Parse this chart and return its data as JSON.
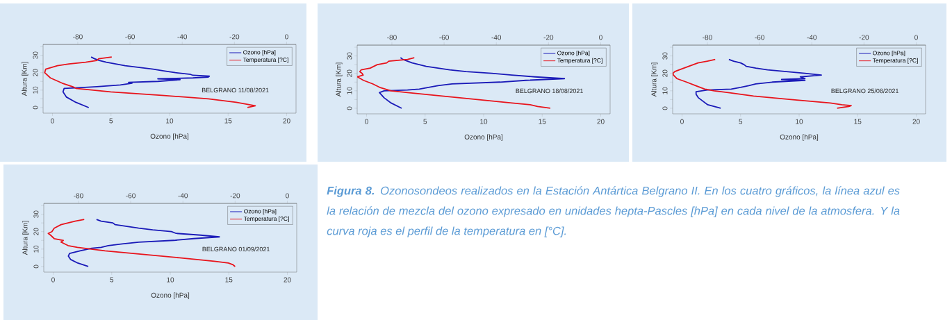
{
  "chart_data": [
    {
      "type": "line",
      "xlabel": "Ozono [hPa]",
      "ylabel": "Altura [Km]",
      "xlim": [
        -0.8,
        20.8
      ],
      "xticks": [
        0,
        5,
        10,
        15,
        20
      ],
      "x2lim": [
        -93.3,
        3.6
      ],
      "x2ticks": [
        -80,
        -60,
        -40,
        -20,
        0
      ],
      "ylim": [
        -3.2,
        36.2
      ],
      "yticks": [
        0,
        {
          "value": 5,
          "label": null
        },
        10,
        {
          "value": 15,
          "label": null
        },
        20,
        {
          "value": 25,
          "label": null
        },
        30,
        {
          "value": 35,
          "label": null
        }
      ],
      "legend": "top right",
      "annotations": [
        "BELGRANO 11/08/2021"
      ],
      "series": [
        {
          "name": "Ozono [hPa]",
          "color": "#1a1ab8",
          "x": [
            3.1,
            2.0,
            1.2,
            0.9,
            1.0,
            2.5,
            3.8,
            5.8,
            6.8,
            6.5,
            9.0,
            10.9,
            9.0,
            12.0,
            13.3,
            13.4,
            12.0,
            11.8,
            10.5,
            9.5,
            8.6,
            6.2,
            4.6,
            4.0,
            3.6,
            3.3
          ],
          "values": [
            0,
            3,
            6,
            9,
            11,
            11.5,
            12,
            13,
            14,
            14.5,
            15,
            16,
            16.5,
            17,
            17.5,
            18,
            18.5,
            19,
            20,
            21,
            22,
            24,
            26,
            27,
            28,
            29
          ]
        },
        {
          "name": "Temperatura [?C]",
          "color": "#e8141c",
          "axis": "x2",
          "x": [
            -15,
            -12,
            -19.3,
            -30,
            -47.8,
            -67.4,
            -80.7,
            -82,
            -86,
            -90.5,
            -92.7,
            -92.3,
            -87.8,
            -83.4,
            -77,
            -72.7,
            -72,
            -67
          ],
          "values": [
            0,
            1,
            3,
            5,
            7,
            9,
            11,
            12,
            14,
            17,
            20,
            22,
            24,
            25,
            26,
            27,
            28,
            29
          ]
        }
      ]
    },
    {
      "type": "line",
      "xlabel": "Ozono [hPa]",
      "ylabel": "Altura [Km]",
      "xlim": [
        -0.8,
        20.8
      ],
      "xticks": [
        0,
        5,
        10,
        15,
        20
      ],
      "x2lim": [
        -93.3,
        3.6
      ],
      "x2ticks": [
        -80,
        -60,
        -40,
        -20,
        0
      ],
      "ylim": [
        -3.2,
        36.2
      ],
      "yticks": [
        0,
        {
          "value": 5,
          "label": null
        },
        10,
        {
          "value": 15,
          "label": null
        },
        20,
        {
          "value": 25,
          "label": null
        },
        30,
        {
          "value": 35,
          "label": null
        }
      ],
      "legend": "top right",
      "annotations": [
        "BELGRANO 18/08/2021"
      ],
      "series": [
        {
          "name": "Ozono [hPa]",
          "color": "#1a1ab8",
          "x": [
            3.0,
            2.1,
            1.5,
            1.1,
            1.5,
            3.5,
            4.5,
            5.3,
            6.1,
            7.3,
            11.4,
            13.6,
            16.9,
            14.4,
            12.4,
            10.7,
            8.5,
            7.1,
            5.1,
            3.9,
            3.5,
            3.1,
            2.9
          ],
          "values": [
            0,
            3,
            6,
            9,
            10,
            10.5,
            11,
            12,
            13,
            14,
            15,
            16,
            17,
            18,
            19,
            20,
            21,
            22,
            24,
            26,
            27,
            28,
            29
          ]
        },
        {
          "name": "Temperatura [?C]",
          "color": "#e8141c",
          "axis": "x2",
          "x": [
            -19.3,
            -24.2,
            -27,
            -34,
            -47.3,
            -60.7,
            -74,
            -80.3,
            -84.7,
            -87.4,
            -90.9,
            -93.2,
            -91,
            -91.4,
            -92.3,
            -91.8,
            -88.3,
            -85.6,
            -82,
            -81.2,
            -74,
            -71.4
          ],
          "values": [
            0,
            1,
            2,
            3,
            5,
            7,
            9,
            10,
            12,
            14,
            16,
            18,
            19,
            20,
            21,
            22,
            23,
            25,
            26,
            27,
            28,
            29
          ]
        }
      ]
    },
    {
      "type": "line",
      "xlabel": "Ozono [hPa]",
      "ylabel": "Altura [Km]",
      "xlim": [
        -0.8,
        20.8
      ],
      "xticks": [
        0,
        5,
        10,
        15,
        20
      ],
      "x2lim": [
        -93.3,
        3.6
      ],
      "x2ticks": [
        -80,
        -60,
        -40,
        -20,
        0
      ],
      "ylim": [
        -3.2,
        36.2
      ],
      "yticks": [
        0,
        {
          "value": 5,
          "label": null
        },
        10,
        {
          "value": 15,
          "label": null
        },
        20,
        {
          "value": 25,
          "label": null
        },
        30,
        {
          "value": 35,
          "label": null
        }
      ],
      "legend": "top right",
      "annotations": [
        "BELGRANO 25/08/2021"
      ],
      "series": [
        {
          "name": "Ozono [hPa]",
          "color": "#1a1ab8",
          "x": [
            3.3,
            2.2,
            1.8,
            1.4,
            1.2,
            1.2,
            2.2,
            4.2,
            5.0,
            5.7,
            6.3,
            7.7,
            10.5,
            8.5,
            10.5,
            10.1,
            11.9,
            10.5,
            8.9,
            7.3,
            6.3,
            5.5,
            5.3,
            5.0,
            4.4,
            4.0
          ],
          "values": [
            0,
            2,
            4,
            6,
            8,
            9.5,
            10.5,
            11,
            12,
            13,
            14,
            15,
            16,
            16.5,
            17,
            18,
            19,
            20,
            21,
            22,
            23,
            24,
            25,
            26,
            27,
            28
          ]
        },
        {
          "name": "Temperatura [?C]",
          "color": "#e8141c",
          "axis": "x2",
          "x": [
            -30.3,
            -25.8,
            -24.9,
            -28.5,
            -32.9,
            -48,
            -62.3,
            -72,
            -77.4,
            -81,
            -84.5,
            -88,
            -91.7,
            -93,
            -93.2,
            -92.5,
            -90.8,
            -87.2,
            -83.6,
            -80,
            -77
          ],
          "values": [
            0,
            1,
            1.5,
            2,
            3,
            5,
            7,
            9,
            10,
            11,
            13,
            15,
            17,
            19,
            20,
            21,
            22,
            24,
            26,
            27,
            28
          ]
        }
      ]
    },
    {
      "type": "line",
      "xlabel": "Ozono [hPa]",
      "ylabel": "Altura [Km]",
      "xlim": [
        -0.8,
        20.8
      ],
      "xticks": [
        0,
        5,
        10,
        15,
        20
      ],
      "x2lim": [
        -93.3,
        3.6
      ],
      "x2ticks": [
        -80,
        -60,
        -40,
        -20,
        0
      ],
      "ylim": [
        -3.2,
        36.2
      ],
      "yticks": [
        0,
        {
          "value": 5,
          "label": null
        },
        10,
        {
          "value": 15,
          "label": null
        },
        20,
        {
          "value": 25,
          "label": null
        },
        30,
        {
          "value": 35,
          "label": null
        }
      ],
      "legend": "top right",
      "annotations": [
        "BELGRANO 01/09/2021"
      ],
      "series": [
        {
          "name": "Ozono [hPa]",
          "color": "#1a1ab8",
          "x": [
            3.0,
            2.1,
            1.5,
            1.3,
            1.4,
            2.3,
            3.3,
            4.1,
            4.7,
            5.9,
            7.3,
            10.3,
            12.0,
            14.2,
            12.6,
            10.5,
            10.1,
            8.5,
            7.3,
            5.3,
            5.1,
            4.1,
            3.7
          ],
          "values": [
            0,
            2,
            4,
            6,
            7.5,
            9,
            10.5,
            11,
            12,
            13,
            14,
            15,
            16,
            17,
            18,
            19,
            20,
            21,
            22,
            24,
            25,
            26,
            27
          ]
        },
        {
          "name": "Temperatura [?C]",
          "color": "#e8141c",
          "axis": "x2",
          "x": [
            -20,
            -20.8,
            -22.6,
            -28,
            -41.3,
            -55.5,
            -69.8,
            -75.1,
            -80.4,
            -84,
            -86.7,
            -85.8,
            -89.3,
            -90.7,
            -91.6,
            -90.2,
            -89.3,
            -86.7,
            -81.3,
            -77.8
          ],
          "values": [
            0,
            1,
            2,
            3,
            5,
            7,
            9,
            10,
            11,
            12,
            14,
            15,
            16,
            18,
            19,
            20,
            22,
            24,
            26,
            27
          ]
        }
      ]
    },
    {
      "type": "other",
      "annotations": [
        "**Figura 8.** Ozonosondeos realizados en la Estación Antártica Belgrano II. En los cuatro gráficos, la línea azul es la relación de mezcla del ozono expresado en unidades hepta-Pascles [hPa] en cada nivel de la atmosfera. Y la curva roja es el perfil de la temperatura en [°C]."
      ]
    }
  ]
}
